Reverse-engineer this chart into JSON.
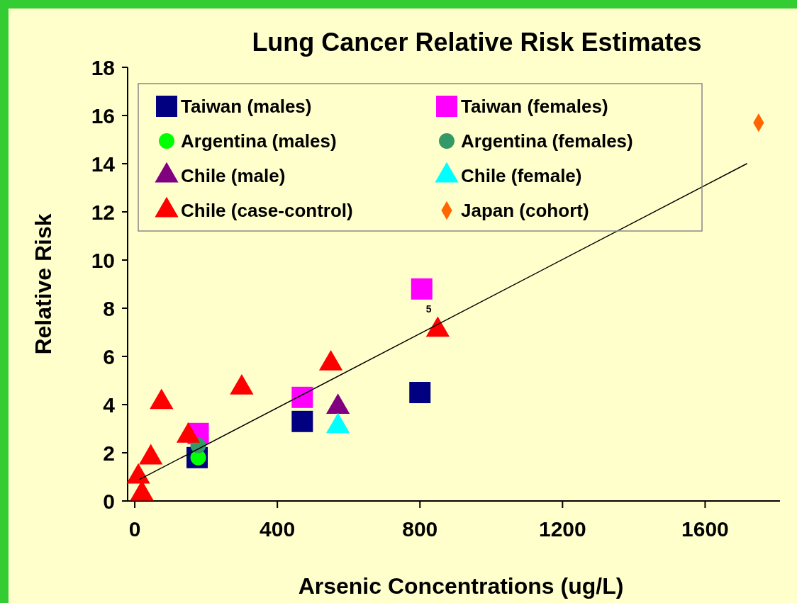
{
  "chart_data": {
    "type": "scatter",
    "title": "Lung Cancer Relative Risk Estimates",
    "xlabel": "Arsenic Concentrations (ug/L)",
    "ylabel": "Relative Risk",
    "xlim": [
      -20,
      1810
    ],
    "xticks": [
      0,
      400,
      800,
      1200,
      1600
    ],
    "ylim": [
      0,
      18
    ],
    "yticks": [
      0,
      2,
      4,
      6,
      8,
      10,
      12,
      14,
      16,
      18
    ],
    "grid": false,
    "legend": "top",
    "annotations": [
      {
        "text": "5",
        "x": 805,
        "y": 8.8
      }
    ],
    "series": [
      {
        "name": "Taiwan (males)",
        "color": "#000080",
        "marker": "square",
        "x": [
          175,
          470,
          800
        ],
        "values": [
          1.8,
          3.3,
          4.5
        ]
      },
      {
        "name": "Taiwan (females)",
        "color": "#ff00ff",
        "marker": "square",
        "x": [
          178,
          470,
          805
        ],
        "values": [
          2.8,
          4.3,
          8.8
        ]
      },
      {
        "name": "Argentina (males)",
        "color": "#00ff00",
        "marker": "circle",
        "x": [
          178
        ],
        "values": [
          1.8
        ]
      },
      {
        "name": "Argentina (females)",
        "color": "#339966",
        "marker": "circle",
        "x": [
          178
        ],
        "values": [
          2.3
        ]
      },
      {
        "name": "Chile (male)",
        "color": "#800080",
        "marker": "triangle",
        "x": [
          570
        ],
        "values": [
          3.9
        ]
      },
      {
        "name": "Chile (female)",
        "color": "#00ffff",
        "marker": "triangle",
        "x": [
          570
        ],
        "values": [
          3.1
        ]
      },
      {
        "name": "Chile (case-control)",
        "color": "#ff0000",
        "marker": "triangle",
        "x": [
          10,
          20,
          45,
          75,
          150,
          300,
          550,
          850
        ],
        "values": [
          1.0,
          0.3,
          1.8,
          4.1,
          2.7,
          4.7,
          5.7,
          7.1
        ]
      },
      {
        "name": "Japan (cohort)",
        "color": "#ff6600",
        "marker": "diamond",
        "x": [
          1750
        ],
        "values": [
          15.7
        ]
      },
      {
        "type": "line",
        "color": "#000000",
        "marker": "none",
        "line_style": "solid",
        "x": [
          14,
          1717
        ],
        "values": [
          0.9,
          14.0
        ]
      }
    ]
  }
}
